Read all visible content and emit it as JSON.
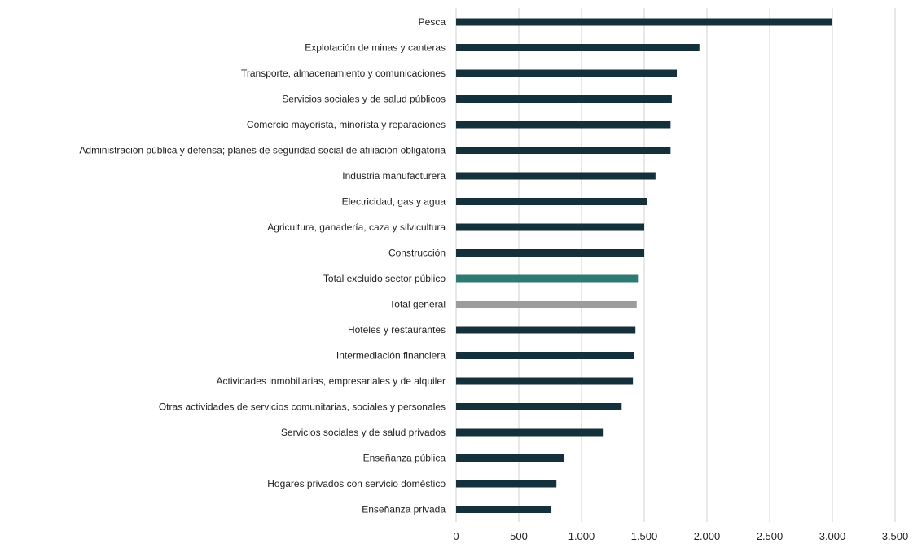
{
  "chart_data": {
    "type": "bar",
    "orientation": "horizontal",
    "title": "",
    "xlabel": "",
    "ylabel": "",
    "xlim": [
      0,
      3500
    ],
    "x_ticks": [
      0,
      500,
      1000,
      1500,
      2000,
      2500,
      3000,
      3500
    ],
    "x_tick_labels": [
      "0",
      "500",
      "1.000",
      "1.500",
      "2.000",
      "2.500",
      "3.000",
      "3.500"
    ],
    "grid": "vertical",
    "legend": "none",
    "colors": {
      "default": "#14303a",
      "highlight_private": "#2e7a73",
      "highlight_total": "#9b9d9f"
    },
    "categories": [
      "Pesca",
      "Explotación de minas y canteras",
      "Transporte, almacenamiento y comunicaciones",
      "Servicios sociales y de salud públicos",
      "Comercio mayorista, minorista y reparaciones",
      "Administración pública y defensa; planes de seguridad social de afiliación obligatoria",
      "Industria manufacturera",
      "Electricidad, gas y agua",
      "Agricultura, ganadería, caza y silvicultura",
      "Construcción",
      "Total excluido sector público",
      "Total general",
      "Hoteles y restaurantes",
      "Intermediación financiera",
      "Actividades inmobiliarias, empresariales y de alquiler",
      "Otras actividades de servicios comunitarias, sociales y personales",
      "Servicios sociales y de salud privados",
      "Enseñanza pública",
      "Hogares privados con servicio doméstico",
      "Enseñanza privada"
    ],
    "values": [
      3000,
      1940,
      1760,
      1720,
      1710,
      1710,
      1590,
      1520,
      1500,
      1500,
      1450,
      1440,
      1430,
      1420,
      1410,
      1320,
      1170,
      860,
      800,
      760
    ],
    "bar_colors": [
      "default",
      "default",
      "default",
      "default",
      "default",
      "default",
      "default",
      "default",
      "default",
      "default",
      "highlight_private",
      "highlight_total",
      "default",
      "default",
      "default",
      "default",
      "default",
      "default",
      "default",
      "default"
    ]
  }
}
